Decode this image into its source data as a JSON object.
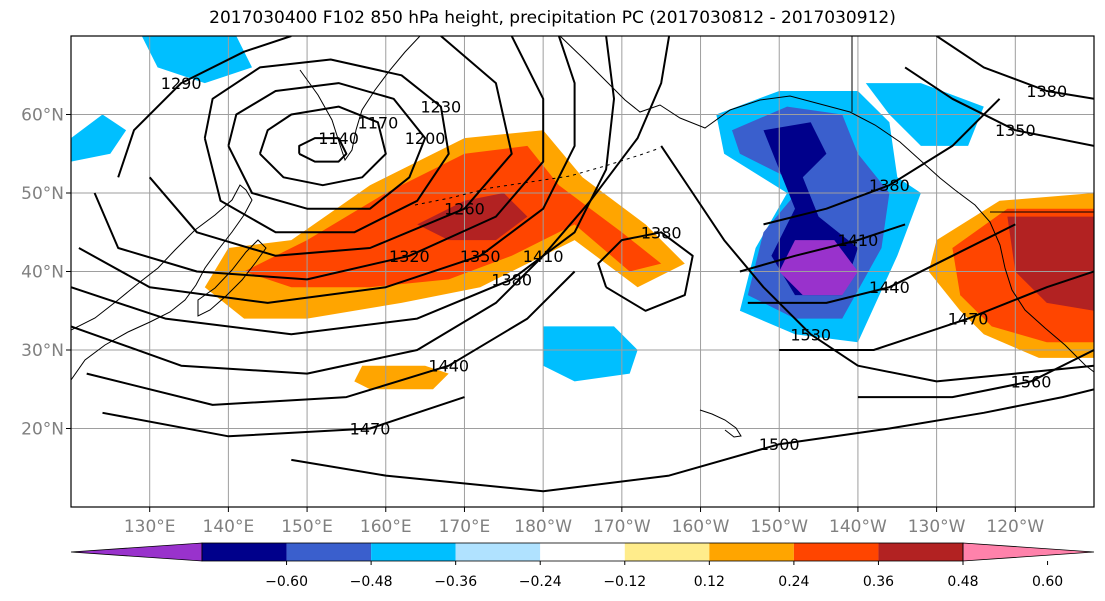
{
  "title": "2017030400 F102 850 hPa height, precipitation PC (2017030812 - 2017030912)",
  "map": {
    "lon_range": [
      120,
      250
    ],
    "lat_range": [
      10,
      70
    ],
    "lon_ticks": [
      {
        "lon": 130,
        "label": "130°E"
      },
      {
        "lon": 140,
        "label": "140°E"
      },
      {
        "lon": 150,
        "label": "150°E"
      },
      {
        "lon": 160,
        "label": "160°E"
      },
      {
        "lon": 170,
        "label": "170°E"
      },
      {
        "lon": 180,
        "label": "180°W"
      },
      {
        "lon": 190,
        "label": "170°W"
      },
      {
        "lon": 200,
        "label": "160°W"
      },
      {
        "lon": 210,
        "label": "150°W"
      },
      {
        "lon": 220,
        "label": "140°W"
      },
      {
        "lon": 230,
        "label": "130°W"
      },
      {
        "lon": 240,
        "label": "120°W"
      }
    ],
    "lat_ticks": [
      {
        "lat": 20,
        "label": "20°N"
      },
      {
        "lat": 30,
        "label": "30°N"
      },
      {
        "lat": 40,
        "label": "40°N"
      },
      {
        "lat": 50,
        "label": "50°N"
      },
      {
        "lat": 60,
        "label": "60°N"
      }
    ],
    "grid_lons": [
      130,
      140,
      150,
      160,
      170,
      180,
      190,
      200,
      210,
      220,
      230,
      240
    ],
    "grid_lats": [
      20,
      30,
      40,
      50,
      60
    ]
  },
  "colorbar": {
    "colors": [
      "#9932cc",
      "#00008b",
      "#3a5fcd",
      "#00bfff",
      "#b0e2ff",
      "#ffffff",
      "#ffec8b",
      "#ffa500",
      "#ff4500",
      "#b22222",
      "#ff82ab"
    ],
    "levels": [
      {
        "value": -0.6,
        "label": "−0.60"
      },
      {
        "value": -0.48,
        "label": "−0.48"
      },
      {
        "value": -0.36,
        "label": "−0.36"
      },
      {
        "value": -0.24,
        "label": "−0.24"
      },
      {
        "value": -0.12,
        "label": "−0.12"
      },
      {
        "value": 0.12,
        "label": "0.12"
      },
      {
        "value": 0.24,
        "label": "0.24"
      },
      {
        "value": 0.36,
        "label": "0.36"
      },
      {
        "value": 0.48,
        "label": "0.48"
      },
      {
        "value": 0.6,
        "label": "0.60"
      }
    ]
  },
  "precip_regions": [
    {
      "level": 0.24,
      "points": [
        [
          148,
          44
        ],
        [
          158,
          51
        ],
        [
          170,
          57
        ],
        [
          180,
          58
        ],
        [
          185,
          52
        ],
        [
          193,
          46
        ],
        [
          198,
          41
        ],
        [
          192,
          38
        ],
        [
          184,
          44
        ],
        [
          178,
          41
        ],
        [
          172,
          38
        ],
        [
          162,
          36
        ],
        [
          150,
          34
        ],
        [
          142,
          34
        ],
        [
          137,
          38
        ],
        [
          140,
          43
        ]
      ]
    },
    {
      "level": 0.36,
      "points": [
        [
          150,
          44
        ],
        [
          160,
          50
        ],
        [
          170,
          55
        ],
        [
          178,
          56
        ],
        [
          182,
          51
        ],
        [
          190,
          45
        ],
        [
          195,
          41
        ],
        [
          191,
          40
        ],
        [
          184,
          46
        ],
        [
          176,
          42
        ],
        [
          168,
          39
        ],
        [
          158,
          38
        ],
        [
          148,
          38
        ],
        [
          142,
          40
        ]
      ]
    },
    {
      "level": 0.48,
      "points": [
        [
          164,
          46
        ],
        [
          170,
          49
        ],
        [
          175,
          50
        ],
        [
          178,
          47
        ],
        [
          174,
          44
        ],
        [
          168,
          44
        ]
      ]
    },
    {
      "level": 0.24,
      "points": [
        [
          157,
          28
        ],
        [
          165,
          28
        ],
        [
          168,
          27
        ],
        [
          166,
          25
        ],
        [
          158,
          25
        ],
        [
          156,
          26
        ]
      ]
    },
    {
      "level": 0.24,
      "points": [
        [
          230,
          44
        ],
        [
          238,
          49
        ],
        [
          250,
          50
        ],
        [
          250,
          29
        ],
        [
          243,
          29
        ],
        [
          236,
          32
        ],
        [
          233,
          35
        ],
        [
          229,
          40
        ]
      ]
    },
    {
      "level": 0.36,
      "points": [
        [
          232,
          43
        ],
        [
          239,
          48
        ],
        [
          250,
          48
        ],
        [
          250,
          31
        ],
        [
          244,
          31
        ],
        [
          237,
          33
        ],
        [
          233,
          37
        ]
      ]
    },
    {
      "level": 0.48,
      "points": [
        [
          239,
          47
        ],
        [
          250,
          47
        ],
        [
          250,
          35
        ],
        [
          244,
          36
        ],
        [
          240,
          40
        ]
      ]
    },
    {
      "level": -0.24,
      "points": [
        [
          202,
          60
        ],
        [
          210,
          63
        ],
        [
          220,
          63
        ],
        [
          224,
          59
        ],
        [
          225,
          52
        ],
        [
          228,
          50
        ],
        [
          225,
          42
        ],
        [
          220,
          31
        ],
        [
          212,
          32
        ],
        [
          205,
          35
        ],
        [
          207,
          43
        ],
        [
          211,
          50
        ],
        [
          203,
          55
        ]
      ]
    },
    {
      "level": -0.36,
      "points": [
        [
          204,
          58
        ],
        [
          211,
          61
        ],
        [
          218,
          60
        ],
        [
          220,
          55
        ],
        [
          224,
          50
        ],
        [
          223,
          43
        ],
        [
          218,
          34
        ],
        [
          212,
          34
        ],
        [
          206,
          37
        ],
        [
          208,
          45
        ],
        [
          213,
          51
        ],
        [
          205,
          55
        ]
      ]
    },
    {
      "level": -0.48,
      "points": [
        [
          208,
          58
        ],
        [
          214,
          59
        ],
        [
          216,
          55
        ],
        [
          213,
          52
        ],
        [
          215,
          47
        ],
        [
          220,
          43
        ],
        [
          218,
          37
        ],
        [
          212,
          37
        ],
        [
          209,
          42
        ],
        [
          212,
          48
        ]
      ]
    },
    {
      "level": -0.6,
      "points": [
        [
          212,
          44
        ],
        [
          217,
          44
        ],
        [
          220,
          40
        ],
        [
          218,
          37
        ],
        [
          213,
          37
        ],
        [
          210,
          40
        ]
      ]
    },
    {
      "level": -0.24,
      "points": [
        [
          180,
          33
        ],
        [
          189,
          33
        ],
        [
          192,
          30
        ],
        [
          191,
          27
        ],
        [
          184,
          26
        ],
        [
          180,
          28
        ]
      ]
    },
    {
      "level": -0.24,
      "points": [
        [
          221,
          64
        ],
        [
          228,
          64
        ],
        [
          236,
          61
        ],
        [
          234,
          56
        ],
        [
          228,
          56
        ],
        [
          224,
          60
        ]
      ]
    },
    {
      "level": -0.24,
      "points": [
        [
          120,
          57
        ],
        [
          124,
          60
        ],
        [
          127,
          58
        ],
        [
          125,
          55
        ],
        [
          120,
          54
        ]
      ]
    },
    {
      "level": -0.24,
      "points": [
        [
          129,
          70
        ],
        [
          141,
          70
        ],
        [
          143,
          66
        ],
        [
          137,
          64
        ],
        [
          131,
          66
        ]
      ]
    }
  ],
  "contours": [
    {
      "label": "1140",
      "points": [
        [
          149,
          55
        ],
        [
          151,
          54
        ],
        [
          154,
          54
        ],
        [
          155,
          55
        ],
        [
          154,
          57
        ],
        [
          151,
          57
        ],
        [
          149,
          56
        ],
        [
          149,
          55
        ]
      ]
    },
    {
      "label": "1170",
      "points": [
        [
          144,
          55
        ],
        [
          147,
          52
        ],
        [
          152,
          51
        ],
        [
          157,
          52
        ],
        [
          160,
          55
        ],
        [
          159,
          59
        ],
        [
          154,
          61
        ],
        [
          148,
          60
        ],
        [
          145,
          58
        ],
        [
          144,
          55
        ]
      ]
    },
    {
      "label": "1200",
      "points": [
        [
          140,
          56
        ],
        [
          143,
          50
        ],
        [
          150,
          48
        ],
        [
          158,
          48
        ],
        [
          163,
          52
        ],
        [
          165,
          57
        ],
        [
          161,
          62
        ],
        [
          154,
          64
        ],
        [
          146,
          63
        ],
        [
          141,
          60
        ],
        [
          140,
          56
        ]
      ]
    },
    {
      "label": "1230",
      "points": [
        [
          137,
          57
        ],
        [
          139,
          49
        ],
        [
          146,
          45
        ],
        [
          156,
          45
        ],
        [
          164,
          49
        ],
        [
          168,
          55
        ],
        [
          167,
          61
        ],
        [
          162,
          65
        ],
        [
          153,
          67
        ],
        [
          144,
          66
        ],
        [
          138,
          62
        ],
        [
          137,
          57
        ]
      ]
    },
    {
      "label": "1260",
      "points": [
        [
          130,
          52
        ],
        [
          136,
          45
        ],
        [
          146,
          42
        ],
        [
          158,
          43
        ],
        [
          170,
          48
        ],
        [
          176,
          55
        ],
        [
          174,
          64
        ],
        [
          167,
          70
        ]
      ]
    },
    {
      "label": "1290",
      "points": [
        [
          126,
          52
        ],
        [
          128,
          58
        ],
        [
          134,
          64
        ],
        [
          142,
          68
        ],
        [
          148,
          70
        ]
      ]
    },
    {
      "label": "1320",
      "points": [
        [
          123,
          50
        ],
        [
          126,
          43
        ],
        [
          136,
          40
        ],
        [
          150,
          39
        ],
        [
          163,
          42
        ],
        [
          174,
          47
        ],
        [
          180,
          54
        ],
        [
          180,
          62
        ],
        [
          176,
          70
        ]
      ]
    },
    {
      "label": "1350",
      "points": [
        [
          121,
          43
        ],
        [
          130,
          38
        ],
        [
          145,
          36
        ],
        [
          160,
          38
        ],
        [
          172,
          42
        ],
        [
          180,
          48
        ],
        [
          184,
          56
        ],
        [
          184,
          64
        ],
        [
          182,
          70
        ]
      ]
    },
    {
      "label": "1380",
      "points": [
        [
          120,
          38
        ],
        [
          132,
          34
        ],
        [
          148,
          32
        ],
        [
          164,
          34
        ],
        [
          176,
          39
        ],
        [
          184,
          45
        ],
        [
          188,
          53
        ],
        [
          189,
          62
        ],
        [
          188,
          70
        ]
      ]
    },
    {
      "label": "1410",
      "points": [
        [
          120,
          33
        ],
        [
          134,
          28
        ],
        [
          150,
          27
        ],
        [
          164,
          30
        ],
        [
          174,
          36
        ],
        [
          180,
          42
        ],
        [
          186,
          49
        ],
        [
          192,
          57
        ],
        [
          195,
          64
        ],
        [
          196,
          70
        ]
      ]
    },
    {
      "label": "1440",
      "points": [
        [
          122,
          27
        ],
        [
          138,
          23
        ],
        [
          155,
          24
        ],
        [
          168,
          28
        ],
        [
          178,
          34
        ],
        [
          184,
          40
        ]
      ]
    },
    {
      "label": "1470",
      "points": [
        [
          124,
          22
        ],
        [
          140,
          19
        ],
        [
          158,
          20
        ],
        [
          170,
          24
        ]
      ]
    },
    {
      "label": "1500",
      "points": [
        [
          148,
          16
        ],
        [
          160,
          14
        ],
        [
          180,
          12
        ],
        [
          196,
          14
        ],
        [
          210,
          18
        ],
        [
          224,
          20
        ],
        [
          236,
          22
        ],
        [
          246,
          24
        ],
        [
          250,
          25
        ]
      ]
    },
    {
      "label": "1530",
      "points": [
        [
          195,
          56
        ],
        [
          199,
          50
        ],
        [
          203,
          44
        ],
        [
          208,
          38
        ],
        [
          214,
          32
        ],
        [
          220,
          28
        ],
        [
          230,
          26
        ],
        [
          240,
          27
        ],
        [
          250,
          28
        ]
      ]
    },
    {
      "label": "1380",
      "points": [
        [
          188,
          38
        ],
        [
          193,
          35
        ],
        [
          198,
          37
        ],
        [
          199,
          42
        ],
        [
          195,
          45
        ],
        [
          190,
          44
        ],
        [
          187,
          41
        ],
        [
          188,
          38
        ]
      ]
    },
    {
      "label": "1410",
      "points": [
        [
          205,
          40
        ],
        [
          212,
          42
        ],
        [
          220,
          44
        ],
        [
          226,
          46
        ]
      ]
    },
    {
      "label": "1440",
      "points": [
        [
          206,
          36
        ],
        [
          216,
          36
        ],
        [
          224,
          38
        ],
        [
          232,
          42
        ],
        [
          240,
          46
        ]
      ]
    },
    {
      "label": "1380",
      "points": [
        [
          208,
          46
        ],
        [
          216,
          48
        ],
        [
          224,
          51
        ],
        [
          232,
          56
        ],
        [
          238,
          62
        ]
      ]
    },
    {
      "label": "1470",
      "points": [
        [
          210,
          30
        ],
        [
          222,
          30
        ],
        [
          234,
          34
        ],
        [
          244,
          38
        ],
        [
          250,
          40
        ]
      ]
    },
    {
      "label": "1560",
      "points": [
        [
          220,
          24
        ],
        [
          232,
          24
        ],
        [
          242,
          26
        ],
        [
          250,
          30
        ]
      ]
    },
    {
      "label": "1380",
      "points": [
        [
          230,
          70
        ],
        [
          236,
          66
        ],
        [
          244,
          63
        ],
        [
          250,
          62
        ]
      ]
    },
    {
      "label": "1350",
      "points": [
        [
          226,
          66
        ],
        [
          232,
          62
        ],
        [
          240,
          58
        ],
        [
          250,
          56
        ]
      ]
    }
  ]
}
